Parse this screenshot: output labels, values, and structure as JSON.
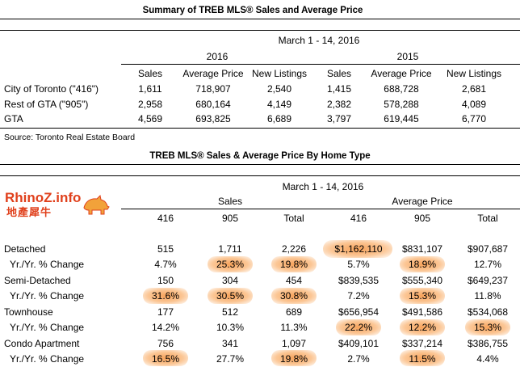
{
  "table1": {
    "title": "Summary of TREB MLS® Sales and Average Price",
    "period": "March 1 - 14, 2016",
    "years": [
      "2016",
      "2015"
    ],
    "columns": [
      "Sales",
      "Average Price",
      "New Listings",
      "Sales",
      "Average Price",
      "New Listings"
    ],
    "rows": [
      {
        "label": "City of Toronto (\"416\")",
        "values": [
          "1,611",
          "718,907",
          "2,540",
          "1,415",
          "688,728",
          "2,681"
        ]
      },
      {
        "label": "Rest of GTA (\"905\")",
        "values": [
          "2,958",
          "680,164",
          "4,149",
          "2,382",
          "578,288",
          "4,089"
        ]
      },
      {
        "label": "GTA",
        "values": [
          "4,569",
          "693,825",
          "6,689",
          "3,797",
          "619,445",
          "6,770"
        ]
      }
    ],
    "source": "Source: Toronto Real Estate Board"
  },
  "table2": {
    "title": "TREB MLS® Sales & Average Price  By Home Type",
    "period": "March 1 - 14, 2016",
    "groups": [
      "Sales",
      "Average Price"
    ],
    "columns": [
      "416",
      "905",
      "Total",
      "416",
      "905",
      "Total"
    ],
    "rows": [
      {
        "label": "Detached",
        "values": [
          "515",
          "1,711",
          "2,226",
          "$1,162,110",
          "$831,107",
          "$907,687"
        ]
      },
      {
        "label": " Yr./Yr. % Change",
        "values": [
          "4.7%",
          "25.3%",
          "19.8%",
          "5.7%",
          "18.9%",
          "12.7%"
        ]
      },
      {
        "label": "Semi-Detached",
        "values": [
          "150",
          "304",
          "454",
          "$839,535",
          "$555,340",
          "$649,237"
        ]
      },
      {
        "label": " Yr./Yr. % Change",
        "values": [
          "31.6%",
          "30.5%",
          "30.8%",
          "7.2%",
          "15.3%",
          "11.8%"
        ]
      },
      {
        "label": "Townhouse",
        "values": [
          "177",
          "512",
          "689",
          "$656,954",
          "$491,586",
          "$534,068"
        ]
      },
      {
        "label": " Yr./Yr. % Change",
        "values": [
          "14.2%",
          "10.3%",
          "11.3%",
          "22.2%",
          "12.2%",
          "15.3%"
        ]
      },
      {
        "label": "Condo Apartment",
        "values": [
          "756",
          "341",
          "1,097",
          "$409,101",
          "$337,214",
          "$386,755"
        ]
      },
      {
        "label": " Yr./Yr. % Change",
        "values": [
          "16.5%",
          "27.7%",
          "19.8%",
          "2.7%",
          "11.5%",
          "4.4%"
        ]
      }
    ]
  },
  "watermark": {
    "brand": "RhinoZ.info",
    "tagline": "地產犀牛"
  },
  "colors": {
    "highlight": "#f79e52",
    "logo": "#e0401c"
  }
}
